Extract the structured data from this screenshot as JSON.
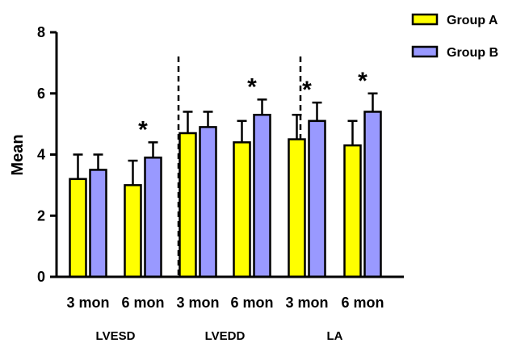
{
  "chart_data": {
    "type": "bar",
    "ylabel": "Mean",
    "ylim": [
      0,
      8
    ],
    "yticks": [
      0,
      2,
      4,
      6,
      8
    ],
    "legend_position": "top-right",
    "groups": [
      "LVESD",
      "LVEDD",
      "LA"
    ],
    "categories": [
      "3 mon",
      "6 mon",
      "3 mon",
      "6 mon",
      "3 mon",
      "6 mon"
    ],
    "category_group": [
      0,
      0,
      1,
      1,
      2,
      2
    ],
    "series": [
      {
        "name": "Group A",
        "color": "#ffff00",
        "values": [
          3.2,
          3.0,
          4.7,
          4.4,
          4.5,
          4.3
        ],
        "errors": [
          0.8,
          0.8,
          0.7,
          0.7,
          0.8,
          0.8
        ]
      },
      {
        "name": "Group B",
        "color": "#9999ff",
        "values": [
          3.5,
          3.9,
          4.9,
          5.3,
          5.1,
          5.4
        ],
        "errors": [
          0.5,
          0.5,
          0.5,
          0.5,
          0.6,
          0.6
        ]
      }
    ],
    "significance": [
      {
        "category_index": 1,
        "label": "*"
      },
      {
        "category_index": 3,
        "label": "*"
      },
      {
        "category_index": 4,
        "label": "*"
      },
      {
        "category_index": 5,
        "label": "*"
      }
    ],
    "group_dividers": true
  }
}
